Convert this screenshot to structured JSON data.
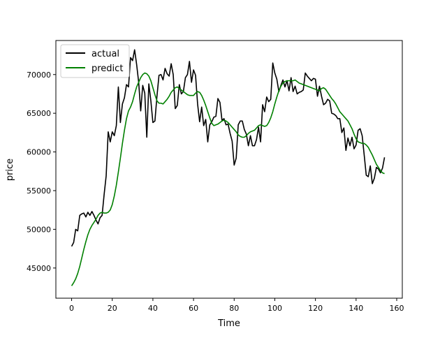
{
  "chart_data": {
    "type": "line",
    "title": "",
    "xlabel": "Time",
    "ylabel": "price",
    "xlim": [
      -7.75,
      162.75
    ],
    "ylim": [
      41100,
      74400
    ],
    "xticks": [
      0,
      20,
      40,
      60,
      80,
      100,
      120,
      140,
      160
    ],
    "yticks": [
      45000,
      50000,
      55000,
      60000,
      65000,
      70000
    ],
    "ytick_labels": [
      "45000",
      "50000",
      "55000",
      "60000",
      "65000",
      "70000"
    ],
    "grid": false,
    "legend_position": "upper left",
    "series": [
      {
        "name": "actual",
        "color": "#000000",
        "x": [
          0,
          1,
          2,
          3,
          4,
          5,
          6,
          7,
          8,
          9,
          10,
          11,
          12,
          13,
          14,
          15,
          16,
          17,
          18,
          19,
          20,
          21,
          22,
          23,
          24,
          25,
          26,
          27,
          28,
          29,
          30,
          31,
          32,
          33,
          34,
          35,
          36,
          37,
          38,
          39,
          40,
          41,
          42,
          43,
          44,
          45,
          46,
          47,
          48,
          49,
          50,
          51,
          52,
          53,
          54,
          55,
          56,
          57,
          58,
          59,
          60,
          61,
          62,
          63,
          64,
          65,
          66,
          67,
          68,
          69,
          70,
          71,
          72,
          73,
          74,
          75,
          76,
          77,
          78,
          79,
          80,
          81,
          82,
          83,
          84,
          85,
          86,
          87,
          88,
          89,
          90,
          91,
          92,
          93,
          94,
          95,
          96,
          97,
          98,
          99,
          100,
          101,
          102,
          103,
          104,
          105,
          106,
          107,
          108,
          109,
          110,
          111,
          112,
          113,
          114,
          115,
          116,
          117,
          118,
          119,
          120,
          121,
          122,
          123,
          124,
          125,
          126,
          127,
          128,
          129,
          130,
          131,
          132,
          133,
          134,
          135,
          136,
          137,
          138,
          139,
          140,
          141,
          142,
          143,
          144,
          145,
          146,
          147,
          148,
          149,
          150,
          151,
          152,
          153,
          154
        ],
        "values": [
          47800,
          48300,
          50000,
          49800,
          51800,
          52000,
          52100,
          51600,
          52200,
          51800,
          52300,
          51800,
          51200,
          50700,
          51500,
          51800,
          54500,
          56900,
          62600,
          61300,
          62600,
          62100,
          63400,
          68400,
          63800,
          66200,
          67000,
          68700,
          68400,
          72200,
          71800,
          73200,
          71300,
          69000,
          65300,
          68600,
          67600,
          61900,
          68800,
          66600,
          63800,
          64000,
          67200,
          69900,
          70000,
          69300,
          70800,
          70100,
          69800,
          71400,
          70000,
          65600,
          66000,
          68700,
          67500,
          67800,
          69600,
          70000,
          71700,
          69000,
          70600,
          69900,
          66200,
          63900,
          65800,
          63400,
          64200,
          61300,
          63500,
          63900,
          64500,
          64600,
          66900,
          66400,
          64100,
          64300,
          63500,
          63600,
          62400,
          61400,
          58300,
          59200,
          63500,
          64000,
          64000,
          62900,
          62300,
          60800,
          62100,
          60800,
          60800,
          61600,
          63200,
          61300,
          66100,
          65200,
          67100,
          66500,
          66800,
          71500,
          70200,
          69400,
          67800,
          68600,
          69300,
          68400,
          69200,
          67900,
          69600,
          67800,
          68500,
          67500,
          67700,
          67800,
          68000,
          70200,
          69800,
          69500,
          69200,
          69500,
          69400,
          67200,
          68500,
          67200,
          66100,
          66300,
          66800,
          66600,
          65000,
          64900,
          64700,
          64300,
          64300,
          62500,
          63100,
          60200,
          61800,
          60800,
          61900,
          60400,
          60900,
          62800,
          63000,
          62100,
          59600,
          57000,
          56800,
          58200,
          55900,
          56600,
          58000,
          57800,
          57300,
          57900,
          59300
        ]
      },
      {
        "name": "predict",
        "color": "#008000",
        "x": [
          0,
          1,
          2,
          3,
          4,
          5,
          6,
          7,
          8,
          9,
          10,
          11,
          12,
          13,
          14,
          15,
          16,
          17,
          18,
          19,
          20,
          21,
          22,
          23,
          24,
          25,
          26,
          27,
          28,
          29,
          30,
          31,
          32,
          33,
          34,
          35,
          36,
          37,
          38,
          39,
          40,
          41,
          42,
          43,
          44,
          45,
          46,
          47,
          48,
          49,
          50,
          51,
          52,
          53,
          54,
          55,
          56,
          57,
          58,
          59,
          60,
          61,
          62,
          63,
          64,
          65,
          66,
          67,
          68,
          69,
          70,
          71,
          72,
          73,
          74,
          75,
          76,
          77,
          78,
          79,
          80,
          81,
          82,
          83,
          84,
          85,
          86,
          87,
          88,
          89,
          90,
          91,
          92,
          93,
          94,
          95,
          96,
          97,
          98,
          99,
          100,
          101,
          102,
          103,
          104,
          105,
          106,
          107,
          108,
          109,
          110,
          111,
          112,
          113,
          114,
          115,
          116,
          117,
          118,
          119,
          120,
          121,
          122,
          123,
          124,
          125,
          126,
          127,
          128,
          129,
          130,
          131,
          132,
          133,
          134,
          135,
          136,
          137,
          138,
          139,
          140,
          141,
          142,
          143,
          144,
          145,
          146,
          147,
          148,
          149,
          150,
          151,
          152,
          153,
          154
        ],
        "values": [
          42700,
          43100,
          43600,
          44300,
          45200,
          46300,
          47400,
          48400,
          49300,
          50000,
          50500,
          50900,
          51300,
          51800,
          52100,
          52200,
          52100,
          52100,
          52200,
          52500,
          53200,
          54300,
          55700,
          57400,
          59200,
          61100,
          62800,
          64300,
          65300,
          65800,
          66500,
          67500,
          68400,
          69000,
          69600,
          70000,
          70200,
          70100,
          69800,
          69200,
          68300,
          67400,
          66600,
          66300,
          66300,
          66200,
          66500,
          66800,
          67200,
          67700,
          68000,
          68300,
          68400,
          68200,
          68000,
          67800,
          67600,
          67400,
          67300,
          67300,
          67300,
          67600,
          67800,
          67700,
          67300,
          66700,
          66000,
          65200,
          64400,
          63700,
          63400,
          63500,
          63600,
          63800,
          64000,
          64100,
          64000,
          63800,
          63500,
          63200,
          62900,
          62600,
          62200,
          62000,
          61900,
          61900,
          62100,
          62400,
          62600,
          62700,
          62800,
          63100,
          63400,
          63500,
          63400,
          63300,
          63400,
          63800,
          64400,
          65200,
          66200,
          67100,
          67900,
          68500,
          68900,
          69100,
          69200,
          69200,
          69200,
          69200,
          69300,
          69100,
          68900,
          68800,
          68700,
          68600,
          68500,
          68400,
          68300,
          68200,
          68100,
          68000,
          67900,
          68200,
          68300,
          68100,
          67700,
          67300,
          66900,
          66600,
          66200,
          65700,
          65200,
          64900,
          64600,
          64300,
          64000,
          63500,
          63000,
          62300,
          61700,
          61300,
          61200,
          61100,
          61100,
          60900,
          60600,
          60100,
          59600,
          59000,
          58400,
          58000,
          57600,
          57300,
          57200
        ]
      }
    ]
  }
}
